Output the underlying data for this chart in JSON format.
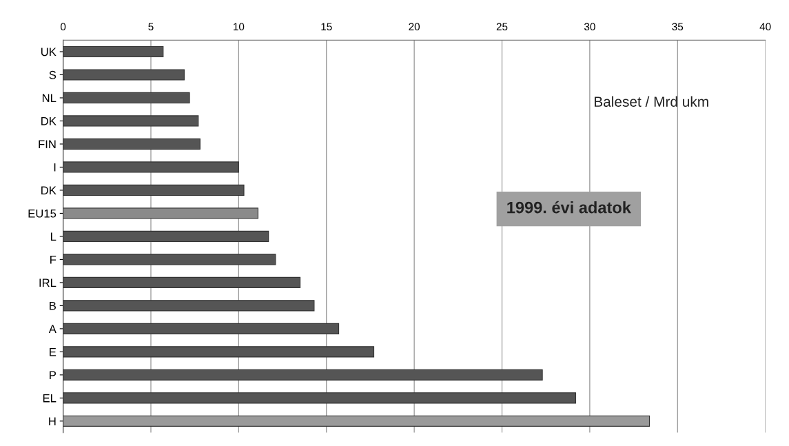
{
  "chart_data": {
    "type": "bar",
    "orientation": "horizontal",
    "categories": [
      "UK",
      "S",
      "NL",
      "DK",
      "FIN",
      "I",
      "DK",
      "EU15",
      "L",
      "F",
      "IRL",
      "B",
      "A",
      "E",
      "P",
      "EL",
      "H"
    ],
    "values": [
      5.7,
      6.9,
      7.2,
      7.7,
      7.8,
      10.0,
      10.3,
      11.1,
      11.7,
      12.1,
      13.5,
      14.3,
      15.7,
      17.7,
      27.3,
      29.2,
      33.4
    ],
    "colors": [
      "#555555",
      "#555555",
      "#555555",
      "#555555",
      "#555555",
      "#555555",
      "#555555",
      "#8a8a8a",
      "#555555",
      "#555555",
      "#555555",
      "#555555",
      "#555555",
      "#555555",
      "#555555",
      "#555555",
      "#9a9a9a"
    ],
    "xlim": [
      0,
      40
    ],
    "xticks": [
      0,
      5,
      10,
      15,
      20,
      25,
      30,
      35,
      40
    ],
    "grid": "x",
    "annotations": [
      "Baleset / Mrd ukm",
      "1999. évi adatok"
    ]
  }
}
